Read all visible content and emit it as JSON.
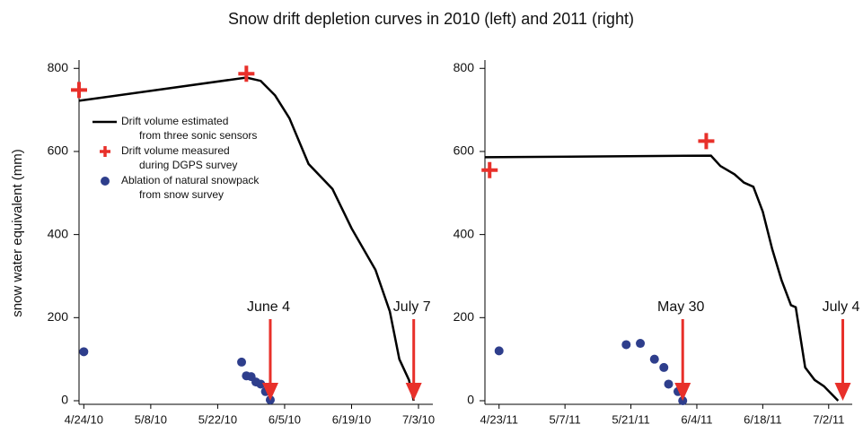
{
  "title": "Snow drift depletion curves in 2010 (left) and 2011 (right)",
  "chart_data": [
    {
      "type": "line",
      "ylabel": "snow water equivalent (mm)",
      "xlim": [
        "2010-04-23",
        "2010-07-06"
      ],
      "xticks": [
        {
          "value": "2010-04-24",
          "label": "4/24/10"
        },
        {
          "value": "2010-05-08",
          "label": "5/8/10"
        },
        {
          "value": "2010-05-22",
          "label": "5/22/10"
        },
        {
          "value": "2010-06-05",
          "label": "6/5/10"
        },
        {
          "value": "2010-06-19",
          "label": "6/19/10"
        },
        {
          "value": "2010-07-03",
          "label": "7/3/10"
        }
      ],
      "ylim": [
        0,
        820
      ],
      "yticks": [
        0,
        200,
        400,
        600,
        800
      ],
      "series": [
        {
          "name": "Drift volume estimated\nfrom three sonic sensors",
          "marker": "line",
          "color": "#000000",
          "x": [
            "2010-04-23",
            "2010-05-28",
            "2010-05-31",
            "2010-06-03",
            "2010-06-06",
            "2010-06-10",
            "2010-06-15",
            "2010-06-19",
            "2010-06-24",
            "2010-06-27",
            "2010-06-29",
            "2010-07-01",
            "2010-07-02"
          ],
          "values": [
            722,
            778,
            770,
            735,
            680,
            570,
            510,
            415,
            315,
            215,
            100,
            50,
            0
          ]
        },
        {
          "name": "Drift volume measured\nduring DGPS survey",
          "marker": "plus",
          "color": "#e8302a",
          "x": [
            "2010-04-23",
            "2010-05-28"
          ],
          "values": [
            748,
            787
          ]
        },
        {
          "name": "Ablation of natural snowpack\nfrom snow survey",
          "marker": "circle",
          "color": "#2e3e8c",
          "x": [
            "2010-04-24",
            "2010-05-27",
            "2010-05-28",
            "2010-05-29",
            "2010-05-30",
            "2010-05-31",
            "2010-06-01",
            "2010-06-02"
          ],
          "values": [
            118,
            93,
            60,
            58,
            45,
            40,
            22,
            2
          ]
        }
      ],
      "annotations": [
        {
          "text": "June 4",
          "x": "2010-06-02"
        },
        {
          "text": "July 7",
          "x": "2010-07-02"
        }
      ]
    },
    {
      "type": "line",
      "xlim": [
        "2011-04-20",
        "2011-07-07"
      ],
      "xticks": [
        {
          "value": "2011-04-23",
          "label": "4/23/11"
        },
        {
          "value": "2011-05-07",
          "label": "5/7/11"
        },
        {
          "value": "2011-05-21",
          "label": "5/21/11"
        },
        {
          "value": "2011-06-04",
          "label": "6/4/11"
        },
        {
          "value": "2011-06-18",
          "label": "6/18/11"
        },
        {
          "value": "2011-07-02",
          "label": "7/2/11"
        }
      ],
      "ylim": [
        0,
        820
      ],
      "yticks": [
        0,
        200,
        400,
        600,
        800
      ],
      "series": [
        {
          "marker": "line",
          "color": "#000000",
          "x": [
            "2011-04-20",
            "2011-06-07",
            "2011-06-09",
            "2011-06-12",
            "2011-06-14",
            "2011-06-16",
            "2011-06-18",
            "2011-06-20",
            "2011-06-22",
            "2011-06-24",
            "2011-06-25",
            "2011-06-27",
            "2011-06-29",
            "2011-07-01",
            "2011-07-04"
          ],
          "values": [
            586,
            590,
            565,
            545,
            525,
            515,
            455,
            365,
            290,
            230,
            225,
            80,
            50,
            35,
            0
          ]
        },
        {
          "marker": "plus",
          "color": "#e8302a",
          "x": [
            "2011-04-21",
            "2011-06-06"
          ],
          "values": [
            555,
            625
          ]
        },
        {
          "marker": "circle",
          "color": "#2e3e8c",
          "x": [
            "2011-04-23",
            "2011-05-20",
            "2011-05-23",
            "2011-05-26",
            "2011-05-28",
            "2011-05-29",
            "2011-05-31",
            "2011-06-01"
          ],
          "values": [
            120,
            135,
            138,
            100,
            80,
            40,
            22,
            0
          ]
        }
      ],
      "annotations": [
        {
          "text": "May 30",
          "x": "2011-06-01"
        },
        {
          "text": "July 4",
          "x": "2011-07-05"
        }
      ]
    }
  ]
}
